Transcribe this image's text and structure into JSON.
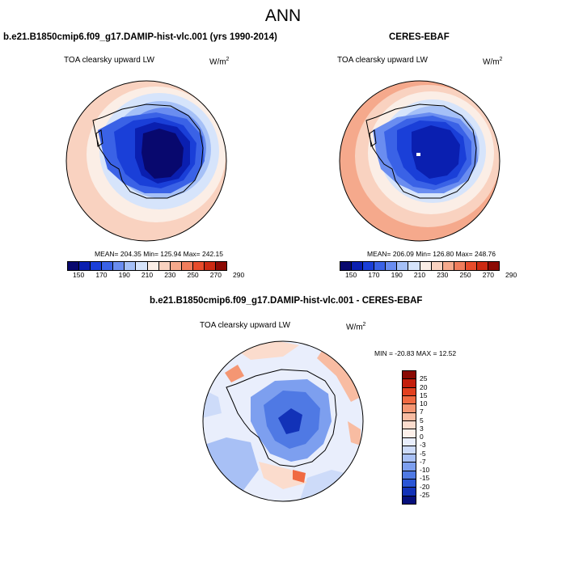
{
  "title": "ANN",
  "panels": {
    "model": {
      "title": "b.e21.B1850cmip6.f09_g17.DAMIP-hist-vlc.001 (yrs 1990-2014)",
      "variable": "TOA clearsky upward LW",
      "units": "W/m",
      "units_exp": "2",
      "stats": "MEAN= 204.35  Min= 125.94  Max= 242.15"
    },
    "obs": {
      "title": "CERES-EBAF",
      "variable": "TOA clearsky upward LW",
      "units": "W/m",
      "units_exp": "2",
      "stats": "MEAN= 206.09  Min= 126.80  Max= 248.76"
    },
    "diff": {
      "title": "b.e21.B1850cmip6.f09_g17.DAMIP-hist-vlc.001 - CERES-EBAF",
      "variable": "TOA clearsky upward LW",
      "units": "W/m",
      "units_exp": "2",
      "stats": "MIN = -20.83 MAX =  12.52"
    }
  },
  "colorbar_abs": {
    "ticks": [
      "150",
      "170",
      "190",
      "210",
      "230",
      "250",
      "270",
      "290"
    ],
    "colors": [
      "#08086e",
      "#0a1fb0",
      "#1a3fd8",
      "#3a62e6",
      "#6a8df0",
      "#a5c0f7",
      "#d6e4fb",
      "#fbeee6",
      "#f9d2c0",
      "#f5a98c",
      "#f07d5c",
      "#e84c2b",
      "#cc2a12",
      "#8c0a04"
    ]
  },
  "colorbar_diff": {
    "ticks": [
      "25",
      "20",
      "15",
      "10",
      "7",
      "5",
      "3",
      "0",
      "-3",
      "-5",
      "-7",
      "-10",
      "-15",
      "-20",
      "-25"
    ],
    "colors": [
      "#8a0a04",
      "#c41e0c",
      "#e2401f",
      "#f06a42",
      "#f49673",
      "#f8bca2",
      "#fbdccd",
      "#fdf0ea",
      "#e9eefc",
      "#cddbf9",
      "#a8c0f5",
      "#7d9fef",
      "#4f79e4",
      "#2a55d6",
      "#1232b8",
      "#06107c"
    ]
  }
}
